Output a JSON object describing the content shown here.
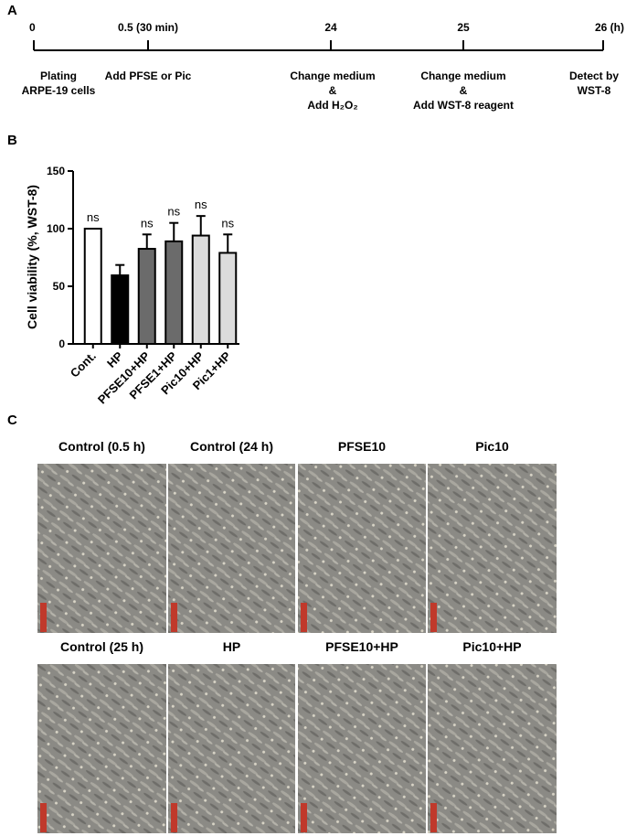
{
  "panel_labels": [
    "A",
    "B",
    "C"
  ],
  "timeline": {
    "ticks": [
      "0",
      "0.5 (30 min)",
      "24",
      "25",
      "26 (h)"
    ],
    "events": [
      [
        "Plating",
        "ARPE-19 cells"
      ],
      [
        "Add PFSE or Pic"
      ],
      [
        "Change medium",
        "&",
        "Add H₂O₂"
      ],
      [
        "Change medium",
        "&",
        "Add WST-8 reagent"
      ],
      [
        "Detect by",
        "WST-8"
      ]
    ]
  },
  "chart_data": {
    "type": "bar",
    "y_label": "Cell viability (%, WST-8)",
    "categories": [
      "Cont.",
      "HP",
      "PFSE10+HP",
      "PFSE1+HP",
      "Pic10+HP",
      "Pic1+HP"
    ],
    "values": [
      100,
      59.5,
      82.5,
      89,
      94,
      79
    ],
    "errors": [
      0,
      9,
      12.5,
      16,
      17,
      16
    ],
    "colors": [
      "#ffffff",
      "#000000",
      "#6b6b6b",
      "#6b6b6b",
      "#dcdcdc",
      "#dcdcdc"
    ],
    "annotations": [
      "ns",
      null,
      "ns",
      "ns",
      "ns",
      "ns"
    ],
    "ylim": [
      0,
      150
    ],
    "yticks": [
      0,
      50,
      100,
      150
    ],
    "grid": false
  },
  "micrographs": {
    "titles": [
      "Control (0.5 h)",
      "Control (24 h)",
      "PFSE10",
      "Pic10",
      "Control (25 h)",
      "HP",
      "PFSE10+HP",
      "Pic10+HP"
    ]
  }
}
